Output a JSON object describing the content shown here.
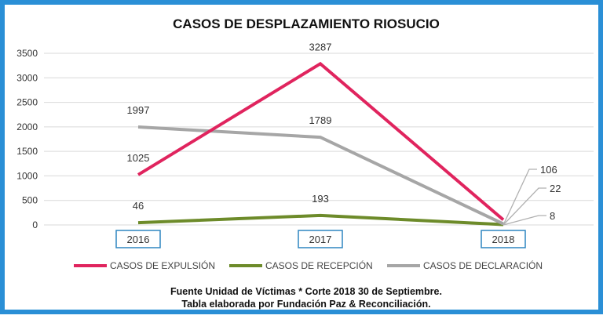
{
  "chart_data": {
    "type": "line",
    "title": "CASOS DE DESPLAZAMIENTO RIOSUCIO",
    "categories": [
      "2016",
      "2017",
      "2018"
    ],
    "ylim": [
      0,
      3500
    ],
    "yticks": [
      "0",
      "500",
      "1000",
      "1500",
      "2000",
      "2500",
      "3000",
      "3500"
    ],
    "series": [
      {
        "name": "CASOS DE EXPULSIÓN",
        "color": "#e0245e",
        "values": [
          1025,
          3287,
          106
        ],
        "labels": [
          "1025",
          "3287",
          "106"
        ]
      },
      {
        "name": "CASOS DE RECEPCIÓN",
        "color": "#6d8b2a",
        "values": [
          46,
          193,
          8
        ],
        "labels": [
          "46",
          "193",
          "8"
        ]
      },
      {
        "name": "CASOS DE DECLARACIÓN",
        "color": "#a6a6a6",
        "values": [
          1997,
          1789,
          22
        ],
        "labels": [
          "1997",
          "1789",
          "22"
        ]
      }
    ],
    "grid": true,
    "legend": "bottom",
    "category_box_color": "#2e86c1"
  },
  "footer": {
    "line1": "Fuente Unidad de Víctimas * Corte 2018 30 de Septiembre.",
    "line2": "Tabla elaborada por Fundación Paz & Reconciliación."
  },
  "colors": {
    "frame": "#2a8fd6",
    "grid": "#d9d9d9"
  }
}
